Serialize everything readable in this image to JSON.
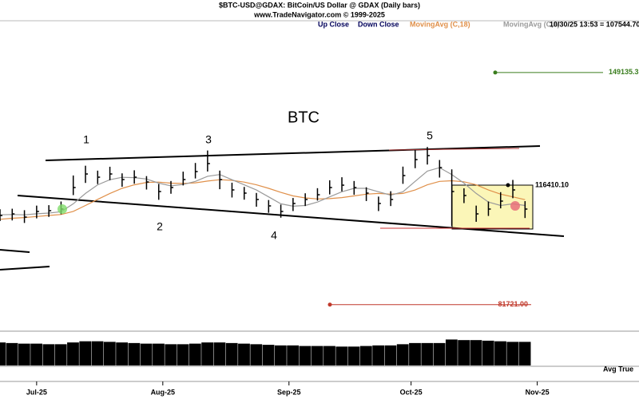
{
  "chart_data": {
    "type": "ohlc",
    "title": "$BTC-USD@GDAX:  BitCoin/US Dollar @ GDAX  (Daily bars)",
    "subtitle": "www.TradeNavigator.com © 1999-2025",
    "legend": [
      {
        "name": "Up Close",
        "color": "#00005a"
      },
      {
        "name": "Down Close",
        "color": "#00005a"
      }
    ],
    "quote": "10/30/25 13:53 = 107544.70",
    "bar_color": "#000000",
    "xlim": [
      0,
      157
    ],
    "xticks": [
      {
        "value": 9,
        "label": "Jul-25"
      },
      {
        "value": 40,
        "label": "Aug-25"
      },
      {
        "value": 71,
        "label": "Sep-25"
      },
      {
        "value": 101,
        "label": "Oct-25"
      },
      {
        "value": 132,
        "label": "Nov-25"
      }
    ],
    "ylim": [
      74000,
      164400
    ],
    "x": [
      0,
      3,
      6,
      9,
      12,
      15,
      18,
      21,
      24,
      27,
      30,
      33,
      36,
      39,
      42,
      45,
      48,
      51,
      54,
      57,
      60,
      63,
      66,
      69,
      72,
      75,
      78,
      81,
      84,
      87,
      90,
      93,
      96,
      99,
      102,
      105,
      108,
      111,
      114,
      117,
      120,
      123,
      126,
      129
    ],
    "bars": {
      "high": [
        109400,
        109570,
        109140,
        110470,
        110600,
        111670,
        119220,
        122060,
        120630,
        121760,
        119840,
        120730,
        119040,
        116760,
        117620,
        120340,
        122860,
        126480,
        120640,
        117130,
        115900,
        114150,
        112090,
        110770,
        112690,
        114050,
        115530,
        117820,
        118710,
        117620,
        115800,
        113090,
        114650,
        121800,
        126640,
        127500,
        123720,
        121000,
        115500,
        110470,
        111670,
        114380,
        117930,
        111770
      ],
      "low": [
        106000,
        106170,
        105440,
        106770,
        107200,
        107970,
        113520,
        117060,
        116730,
        117860,
        115940,
        116830,
        115140,
        112160,
        113920,
        116340,
        118360,
        120380,
        115240,
        112830,
        112200,
        110150,
        108390,
        106970,
        108890,
        110350,
        111930,
        113720,
        114610,
        113620,
        111800,
        108890,
        110350,
        116800,
        121340,
        122400,
        118620,
        104500,
        111200,
        105770,
        107470,
        109680,
        112630,
        106870
      ],
      "close": [
        107600,
        108070,
        107140,
        108770,
        109000,
        109470,
        115720,
        119660,
        118730,
        119660,
        118040,
        118730,
        117340,
        114560,
        115720,
        118040,
        120360,
        122680,
        118040,
        115030,
        114100,
        112250,
        110390,
        108770,
        111090,
        112250,
        113630,
        115720,
        116410,
        115720,
        114100,
        111090,
        112250,
        119200,
        123840,
        125000,
        121520,
        114560,
        113400,
        108070,
        109470,
        111780,
        115030,
        109470
      ]
    },
    "series": [
      {
        "name": "MovingAvg (C,18)",
        "color": "#e0904a",
        "values": [
          106500,
          106800,
          107000,
          107300,
          107600,
          107900,
          108800,
          110500,
          112300,
          114000,
          115500,
          116500,
          117200,
          117300,
          117000,
          116900,
          117100,
          117600,
          118000,
          117800,
          117300,
          116500,
          115500,
          114300,
          113300,
          112700,
          112400,
          112500,
          112800,
          113300,
          113800,
          114000,
          113800,
          114000,
          115000,
          116500,
          117500,
          117700,
          117400,
          116500,
          115000,
          113800,
          113000,
          112200
        ]
      },
      {
        "name": "MovingAvg (C,8)",
        "color": "#9a9a9a",
        "values": [
          107800,
          107900,
          107800,
          108100,
          108300,
          108700,
          111000,
          114000,
          116500,
          118000,
          118700,
          118600,
          118200,
          117000,
          116200,
          116600,
          117500,
          119000,
          119500,
          118000,
          116500,
          115000,
          113000,
          111000,
          110300,
          110500,
          111500,
          113000,
          114500,
          115500,
          115500,
          114500,
          113500,
          114500,
          117500,
          120500,
          121500,
          119500,
          117000,
          114000,
          111500,
          110500,
          111000,
          110500
        ]
      }
    ],
    "levels": [
      {
        "value": 149135.3,
        "label": "149135.3",
        "color": "#3a7d1e"
      },
      {
        "value": 116410.1,
        "label": "116410.10",
        "color": "#000000"
      },
      {
        "value": 81721,
        "label": "81721.00",
        "color": "#c0392b"
      }
    ],
    "annotations": [
      "BTC",
      "1",
      "2",
      "3",
      "4",
      "5"
    ],
    "indicator": {
      "name": "Avg True",
      "color": "#000000",
      "ylim": [
        0,
        5000
      ],
      "values": [
        3900,
        3800,
        3700,
        3700,
        3600,
        3600,
        3900,
        4100,
        4100,
        4000,
        3900,
        3800,
        3700,
        3700,
        3600,
        3600,
        3700,
        3900,
        3900,
        3800,
        3700,
        3600,
        3500,
        3400,
        3400,
        3300,
        3300,
        3300,
        3200,
        3200,
        3300,
        3400,
        3400,
        3600,
        3800,
        3800,
        3800,
        4400,
        4300,
        4300,
        4200,
        4100,
        4000,
        4000
      ]
    }
  }
}
